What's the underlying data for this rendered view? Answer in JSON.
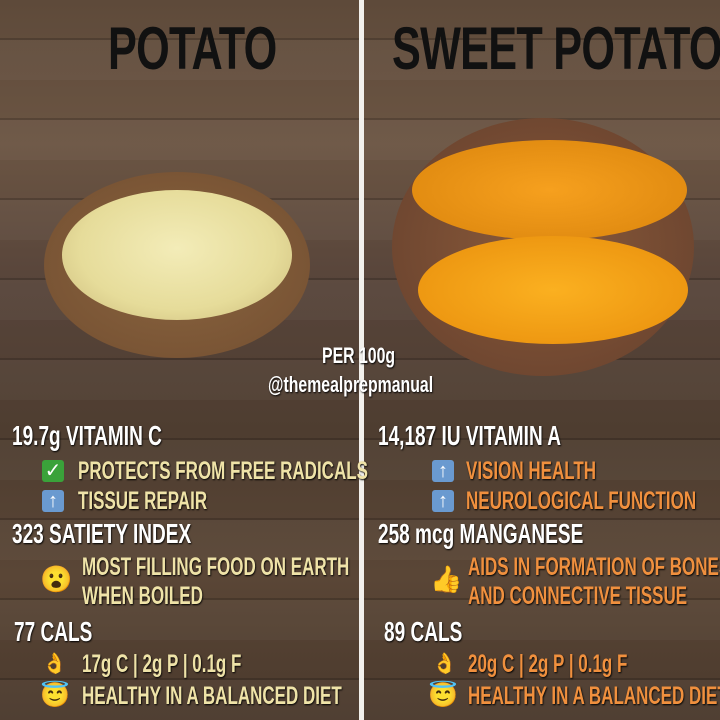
{
  "left": {
    "title": "POTATO",
    "vitamin": "19.7g VITAMIN C",
    "vitamin_points": [
      {
        "icon": "check-mark",
        "text": "PROTECTS FROM FREE RADICALS"
      },
      {
        "icon": "up-arrow",
        "text": "TISSUE REPAIR"
      }
    ],
    "second": "323 SATIETY INDEX",
    "second_points": {
      "icon": "surprised-face",
      "lines": [
        "MOST FILLING FOOD ON EARTH",
        "WHEN BOILED"
      ]
    },
    "cals": "77 CALS",
    "macros": {
      "icon": "ok-hand",
      "text": "17g C | 2g P | 0.1g F"
    },
    "healthy": {
      "icon": "halo-smile",
      "text": "HEALTHY IN A BALANCED DIET"
    },
    "accent": "#efe3a8"
  },
  "right": {
    "title": "SWEET POTATO",
    "vitamin": "14,187 IU VITAMIN A",
    "vitamin_points": [
      {
        "icon": "up-arrow",
        "text": "VISION HEALTH"
      },
      {
        "icon": "up-arrow",
        "text": "NEUROLOGICAL FUNCTION"
      }
    ],
    "second": "258 mcg MANGANESE",
    "second_points": {
      "icon": "thumbs-up",
      "lines": [
        "AIDS IN FORMATION OF BONES",
        "AND CONNECTIVE TISSUE"
      ]
    },
    "cals": "89 CALS",
    "macros": {
      "icon": "ok-hand",
      "text": "20g C | 2g P | 0.1g F"
    },
    "healthy": {
      "icon": "halo-smile",
      "text": "HEALTHY IN A BALANCED DIET"
    },
    "accent": "#f0903e"
  },
  "per": "PER 100g",
  "handle": "@themealprepmanual"
}
